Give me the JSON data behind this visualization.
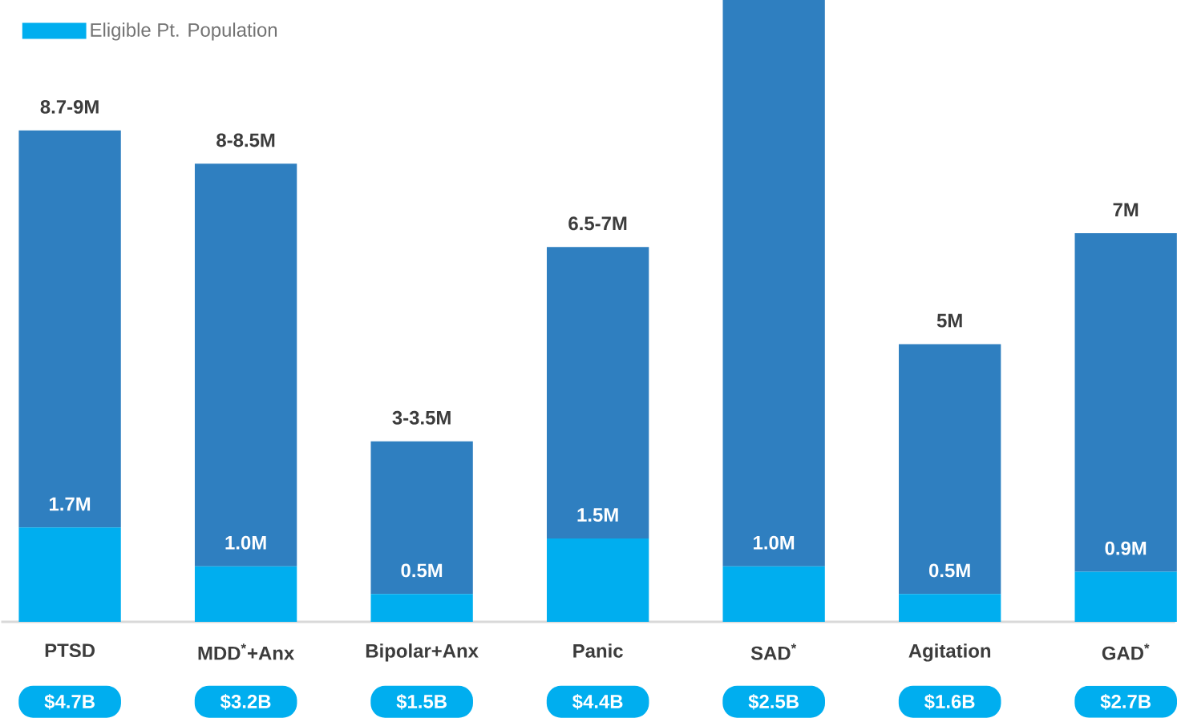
{
  "chart_data": {
    "type": "bar",
    "stacked": true,
    "legend": "top left",
    "ylim": [
      0,
      11.2
    ],
    "categories": [
      "PTSD",
      "MDD$^{*}$+Anx",
      "Bipolar+Anx",
      "Panic",
      "SAD$^{*}$",
      "Agitation",
      "GAD$^{*}$"
    ],
    "series": [
      {
        "name": "Eligible Pt. Population",
        "color": "#00aeef",
        "values": [
          1.7,
          1.0,
          0.5,
          1.5,
          1.0,
          0.5,
          0.9
        ],
        "value_labels": [
          "1.7M",
          "1.0M",
          "0.5M",
          "1.5M",
          "1.0M",
          "0.5M",
          "0.9M"
        ]
      },
      {
        "color": "#2f7fc0",
        "values": [
          7.15,
          7.25,
          2.75,
          5.25,
          10.2,
          4.5,
          6.1
        ]
      }
    ],
    "totals": [
      "8.7-9M",
      "8-8.5M",
      "3-3.5M",
      "6.5-7M",
      null,
      "5M",
      "7M"
    ],
    "annotations": [
      "$4.7B",
      "$3.2B",
      "$1.5B",
      "$4.4B",
      "$2.5B",
      "$1.6B",
      "$2.7B"
    ]
  }
}
